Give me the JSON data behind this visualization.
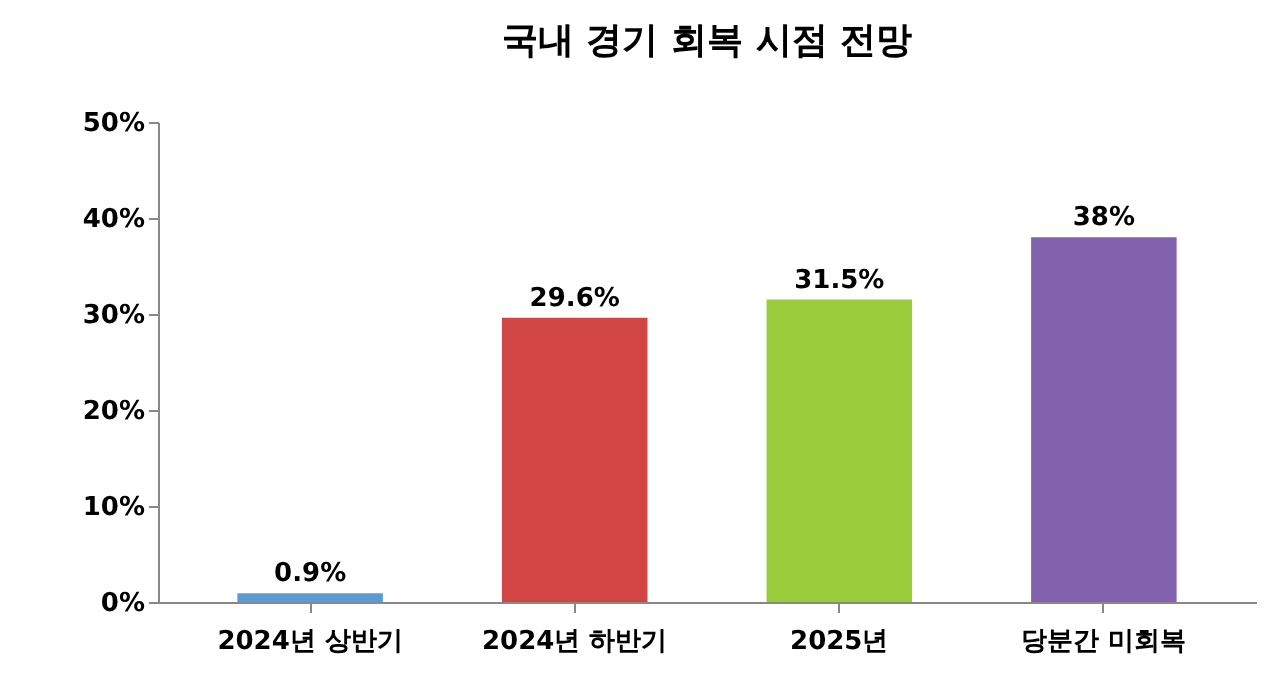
{
  "chart_data": {
    "type": "bar",
    "title": "국내 경기 회복 시점 전망",
    "categories": [
      "2024년 상반기",
      "2024년 하반기",
      "2025년",
      "당분간 미회복"
    ],
    "values": [
      0.9,
      29.6,
      31.5,
      38
    ],
    "value_labels": [
      "0.9%",
      "29.6%",
      "31.5%",
      "38%"
    ],
    "colors": [
      "#5b9bd5",
      "#d24545",
      "#9bcc3c",
      "#8262ac"
    ],
    "ylim": [
      0,
      50
    ],
    "yticks": [
      {
        "value": 0,
        "label": "0%"
      },
      {
        "value": 10,
        "label": "10%"
      },
      {
        "value": 20,
        "label": "20%"
      },
      {
        "value": 30,
        "label": "30%"
      },
      {
        "value": 40,
        "label": "40%"
      },
      {
        "value": 50,
        "label": "50%"
      }
    ],
    "grid": false
  }
}
